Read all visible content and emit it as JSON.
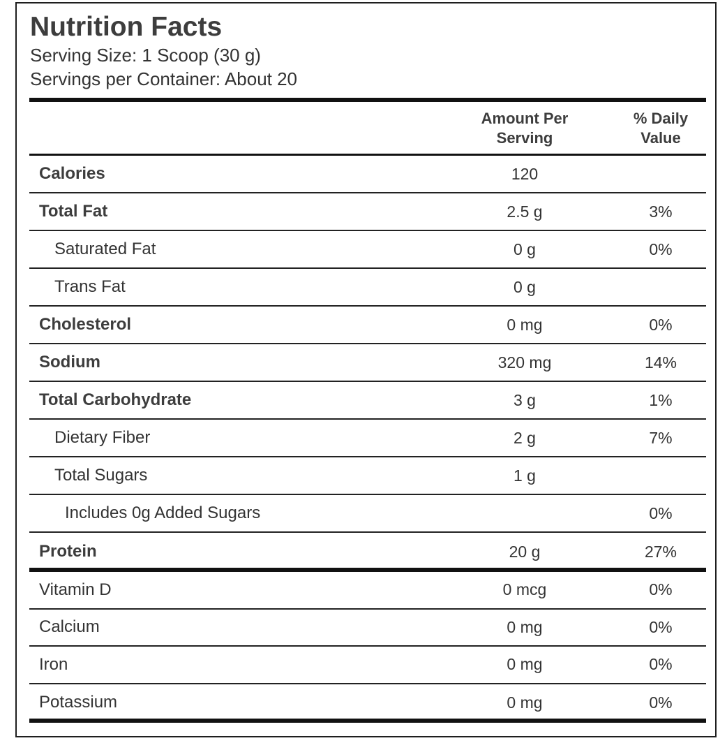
{
  "label": {
    "title": "Nutrition Facts",
    "serving_size": "Serving Size: 1 Scoop (30 g)",
    "servings_per_container": "Servings per Container: About 20"
  },
  "columns": {
    "amount_line1": "Amount Per",
    "amount_line2": "Serving",
    "daily_value_line1": "% Daily",
    "daily_value_line2": "Value"
  },
  "nutrients": [
    {
      "name": "Calories",
      "amount": "120",
      "daily_value": ""
    },
    {
      "name": "Total Fat",
      "amount": "2.5 g",
      "daily_value": "3%"
    },
    {
      "name": "Saturated Fat",
      "amount": "0 g",
      "daily_value": "0%"
    },
    {
      "name": "Trans Fat",
      "amount": "0 g",
      "daily_value": ""
    },
    {
      "name": "Cholesterol",
      "amount": "0 mg",
      "daily_value": "0%"
    },
    {
      "name": "Sodium",
      "amount": "320 mg",
      "daily_value": "14%"
    },
    {
      "name": "Total Carbohydrate",
      "amount": "3 g",
      "daily_value": "1%"
    },
    {
      "name": "Dietary Fiber",
      "amount": "2 g",
      "daily_value": "7%"
    },
    {
      "name": "Total Sugars",
      "amount": "1 g",
      "daily_value": ""
    },
    {
      "name": "Includes 0g Added Sugars",
      "amount": "",
      "daily_value": "0%"
    },
    {
      "name": "Protein",
      "amount": "20 g",
      "daily_value": "27%"
    }
  ],
  "vitamins_minerals": [
    {
      "name": "Vitamin D",
      "amount": "0 mcg",
      "daily_value": "0%"
    },
    {
      "name": "Calcium",
      "amount": "0 mg",
      "daily_value": "0%"
    },
    {
      "name": "Iron",
      "amount": "0 mg",
      "daily_value": "0%"
    },
    {
      "name": "Potassium",
      "amount": "0 mg",
      "daily_value": "0%"
    }
  ]
}
